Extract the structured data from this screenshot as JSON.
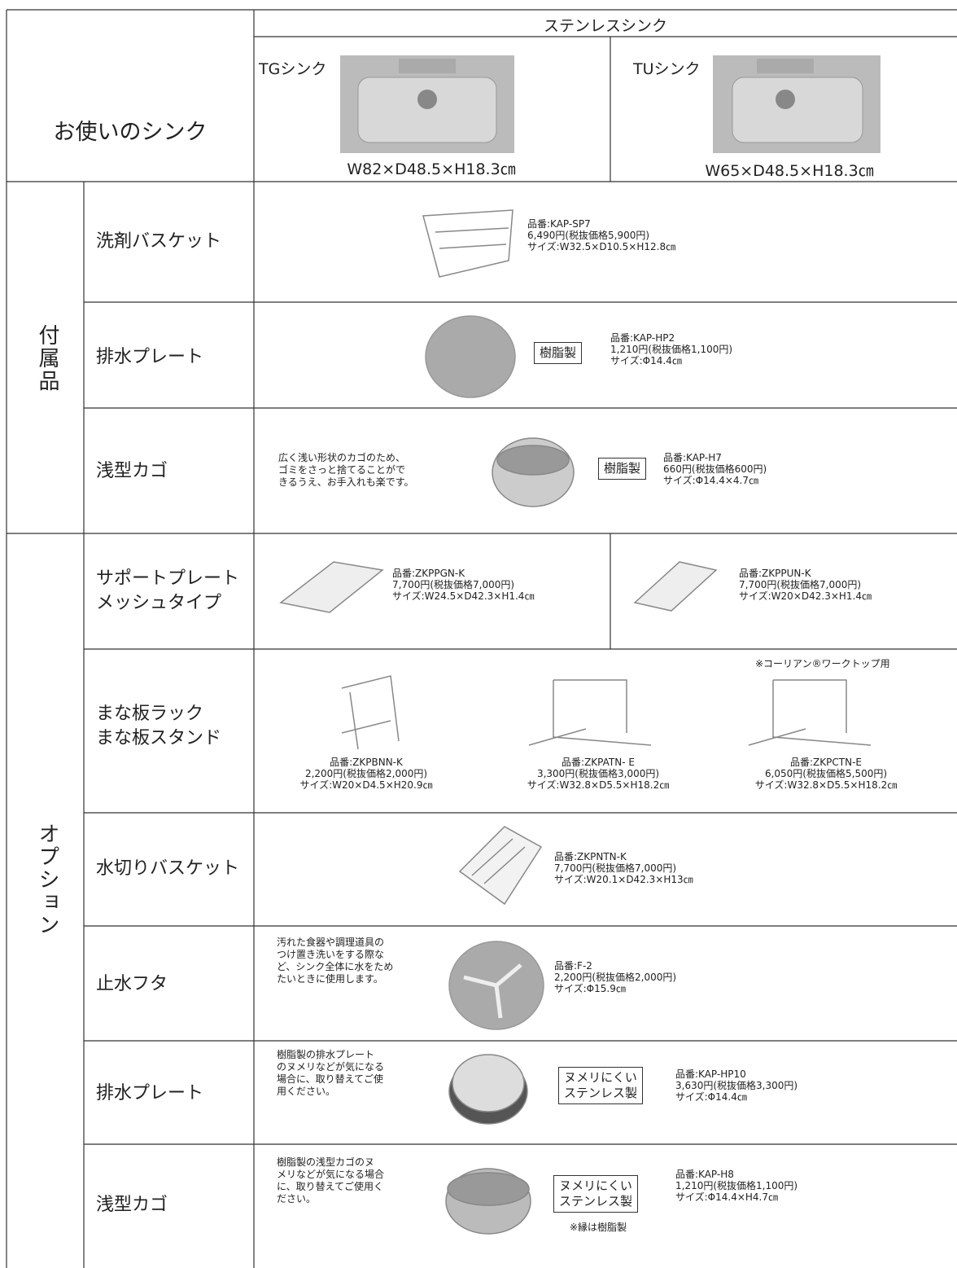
{
  "header": {
    "label": "お使いのシンク",
    "category": "ステンレスシンク",
    "sinks": [
      {
        "name": "TGシンク",
        "size": "W82×D48.5×H18.3㎝"
      },
      {
        "name": "TUシンク",
        "size": "W65×D48.5×H18.3㎝"
      }
    ]
  },
  "groups": [
    {
      "label": "付属品",
      "rows": [
        {
          "name": "洗剤バスケット",
          "products": [
            {
              "info": "品番:KAP-SP7\n6,490円(税抜価格5,900円)\nサイズ:W32.5×D10.5×H12.8㎝"
            }
          ]
        },
        {
          "name": "排水プレート",
          "products": [
            {
              "material": "樹脂製",
              "info": "品番:KAP-HP2\n1,210円(税抜価格1,100円)\nサイズ:Φ14.4㎝"
            }
          ]
        },
        {
          "name": "浅型カゴ",
          "products": [
            {
              "description": "広く浅い形状のカゴのため、\nゴミをさっと捨てることがで\nきるうえ、お手入れも楽です。",
              "material": "樹脂製",
              "info": "品番:KAP-H7\n660円(税抜価格600円)\nサイズ:Φ14.4×4.7㎝"
            }
          ]
        }
      ]
    },
    {
      "label": "オプション",
      "rows": [
        {
          "name": "サポートプレート\nメッシュタイプ",
          "products": [
            {
              "info": "品番:ZKPPGN-K\n7,700円(税抜価格7,000円)\nサイズ:W24.5×D42.3×H1.4㎝"
            },
            {
              "info": "品番:ZKPPUN-K\n7,700円(税抜価格7,000円)\nサイズ:W20×D42.3×H1.4㎝"
            }
          ]
        },
        {
          "name": "まな板ラック\nまな板スタンド",
          "note": "※コーリアン®ワークトップ用",
          "products": [
            {
              "info": "品番:ZKPBNN-K\n2,200円(税抜価格2,000円)\nサイズ:W20×D4.5×H20.9㎝"
            },
            {
              "info": "品番:ZKPATN- E\n3,300円(税抜価格3,000円)\nサイズ:W32.8×D5.5×H18.2㎝"
            },
            {
              "info": "品番:ZKPCTN-E\n6,050円(税抜価格5,500円)\nサイズ:W32.8×D5.5×H18.2㎝"
            }
          ]
        },
        {
          "name": "水切りバスケット",
          "products": [
            {
              "info": "品番:ZKPNTN-K\n7,700円(税抜価格7,000円)\nサイズ:W20.1×D42.3×H13㎝"
            }
          ]
        },
        {
          "name": "止水フタ",
          "products": [
            {
              "description": "汚れた食器や調理道具の\nつけ置き洗いをする際な\nど、シンク全体に水をため\nたいときに使用します。",
              "info": "品番:F-2\n2,200円(税抜価格2,000円)\nサイズ:Φ15.9㎝"
            }
          ]
        },
        {
          "name": "排水プレート",
          "products": [
            {
              "description": "樹脂製の排水プレート\nのヌメリなどが気になる\n場合に、取り替えてご使\n用ください。",
              "material": "ヌメリにくい\nステンレス製",
              "info": "品番:KAP-HP10\n3,630円(税抜価格3,300円)\nサイズ:Φ14.4㎝"
            }
          ]
        },
        {
          "name": "浅型カゴ",
          "products": [
            {
              "description": "樹脂製の浅型カゴのヌ\nメリなどが気になる場合\nに、取り替えてご使用く\nださい。",
              "material": "ヌメリにくい\nステンレス製",
              "material_note": "※縁は樹脂製",
              "info": "品番:KAP-H8\n1,210円(税抜価格1,100円)\nサイズ:Φ14.4×H4.7㎝"
            }
          ]
        }
      ]
    }
  ]
}
